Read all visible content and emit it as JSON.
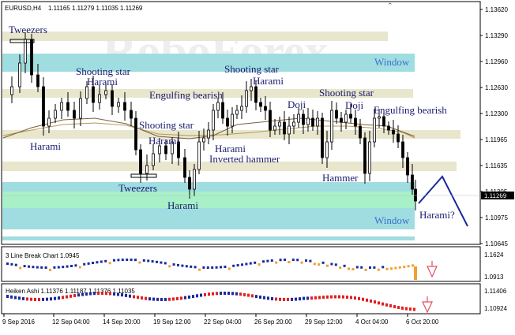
{
  "header": {
    "symbol": "EURUSD,H4",
    "ohlc": "1.11165 1.11279 1.11035 1.11269"
  },
  "watermark": "RoboForex",
  "main_chart": {
    "price_labels": [
      "1.13620",
      "1.13290",
      "1.12960",
      "1.12630",
      "1.12300",
      "1.11965",
      "1.11635",
      "1.11305",
      "1.10975",
      "1.10645"
    ],
    "current_price": "1.11269",
    "annotations": [
      {
        "text": "Tweezers"
      },
      {
        "text": "Shooting star"
      },
      {
        "text": "Harami"
      },
      {
        "text": "Shooting star"
      },
      {
        "text": "Harami"
      },
      {
        "text": "Engulfing bearish"
      },
      {
        "text": "Shooting star"
      },
      {
        "text": "Harami"
      },
      {
        "text": "Harami"
      },
      {
        "text": "Harami"
      },
      {
        "text": "Inverted hammer"
      },
      {
        "text": "Tweezers"
      },
      {
        "text": "Harami"
      },
      {
        "text": "Doji"
      },
      {
        "text": "Shooting star"
      },
      {
        "text": "Doji"
      },
      {
        "text": "Engulfing bearish"
      },
      {
        "text": "Hammer"
      },
      {
        "text": "Harami?"
      }
    ],
    "windows": [
      "Window",
      "Window"
    ]
  },
  "panel1": {
    "label": "3 Line Break Chart 1.0945",
    "price_labels": [
      "1.1624",
      "1.0913"
    ]
  },
  "panel2": {
    "label": "Heiken Ashi 1.11376 1.11187 1.11376 1.11035",
    "price_labels": [
      "1.11406",
      "1.10924"
    ]
  },
  "time_labels": [
    "9 Sep 2016",
    "12 Sep 04:00",
    "14 Sep 20:00",
    "19 Sep 12:00",
    "22 Sep 04:00",
    "26 Sep 20:00",
    "29 Sep 12:00",
    "4 Oct 04:00",
    "6 Oct 20:00"
  ],
  "colors": {
    "band_beige": "#e8e6cc",
    "band_cyan": "#9fdde0",
    "band_green": "#a8f0c8",
    "candle": "#000000",
    "line_break_up": "#1a2a9a",
    "line_break_down": "#f0a030",
    "heiken_up": "#1a2a9a",
    "heiken_down": "#e02020",
    "forecast_arrow": "#1a2a9a",
    "down_arrow": "#e05060"
  }
}
